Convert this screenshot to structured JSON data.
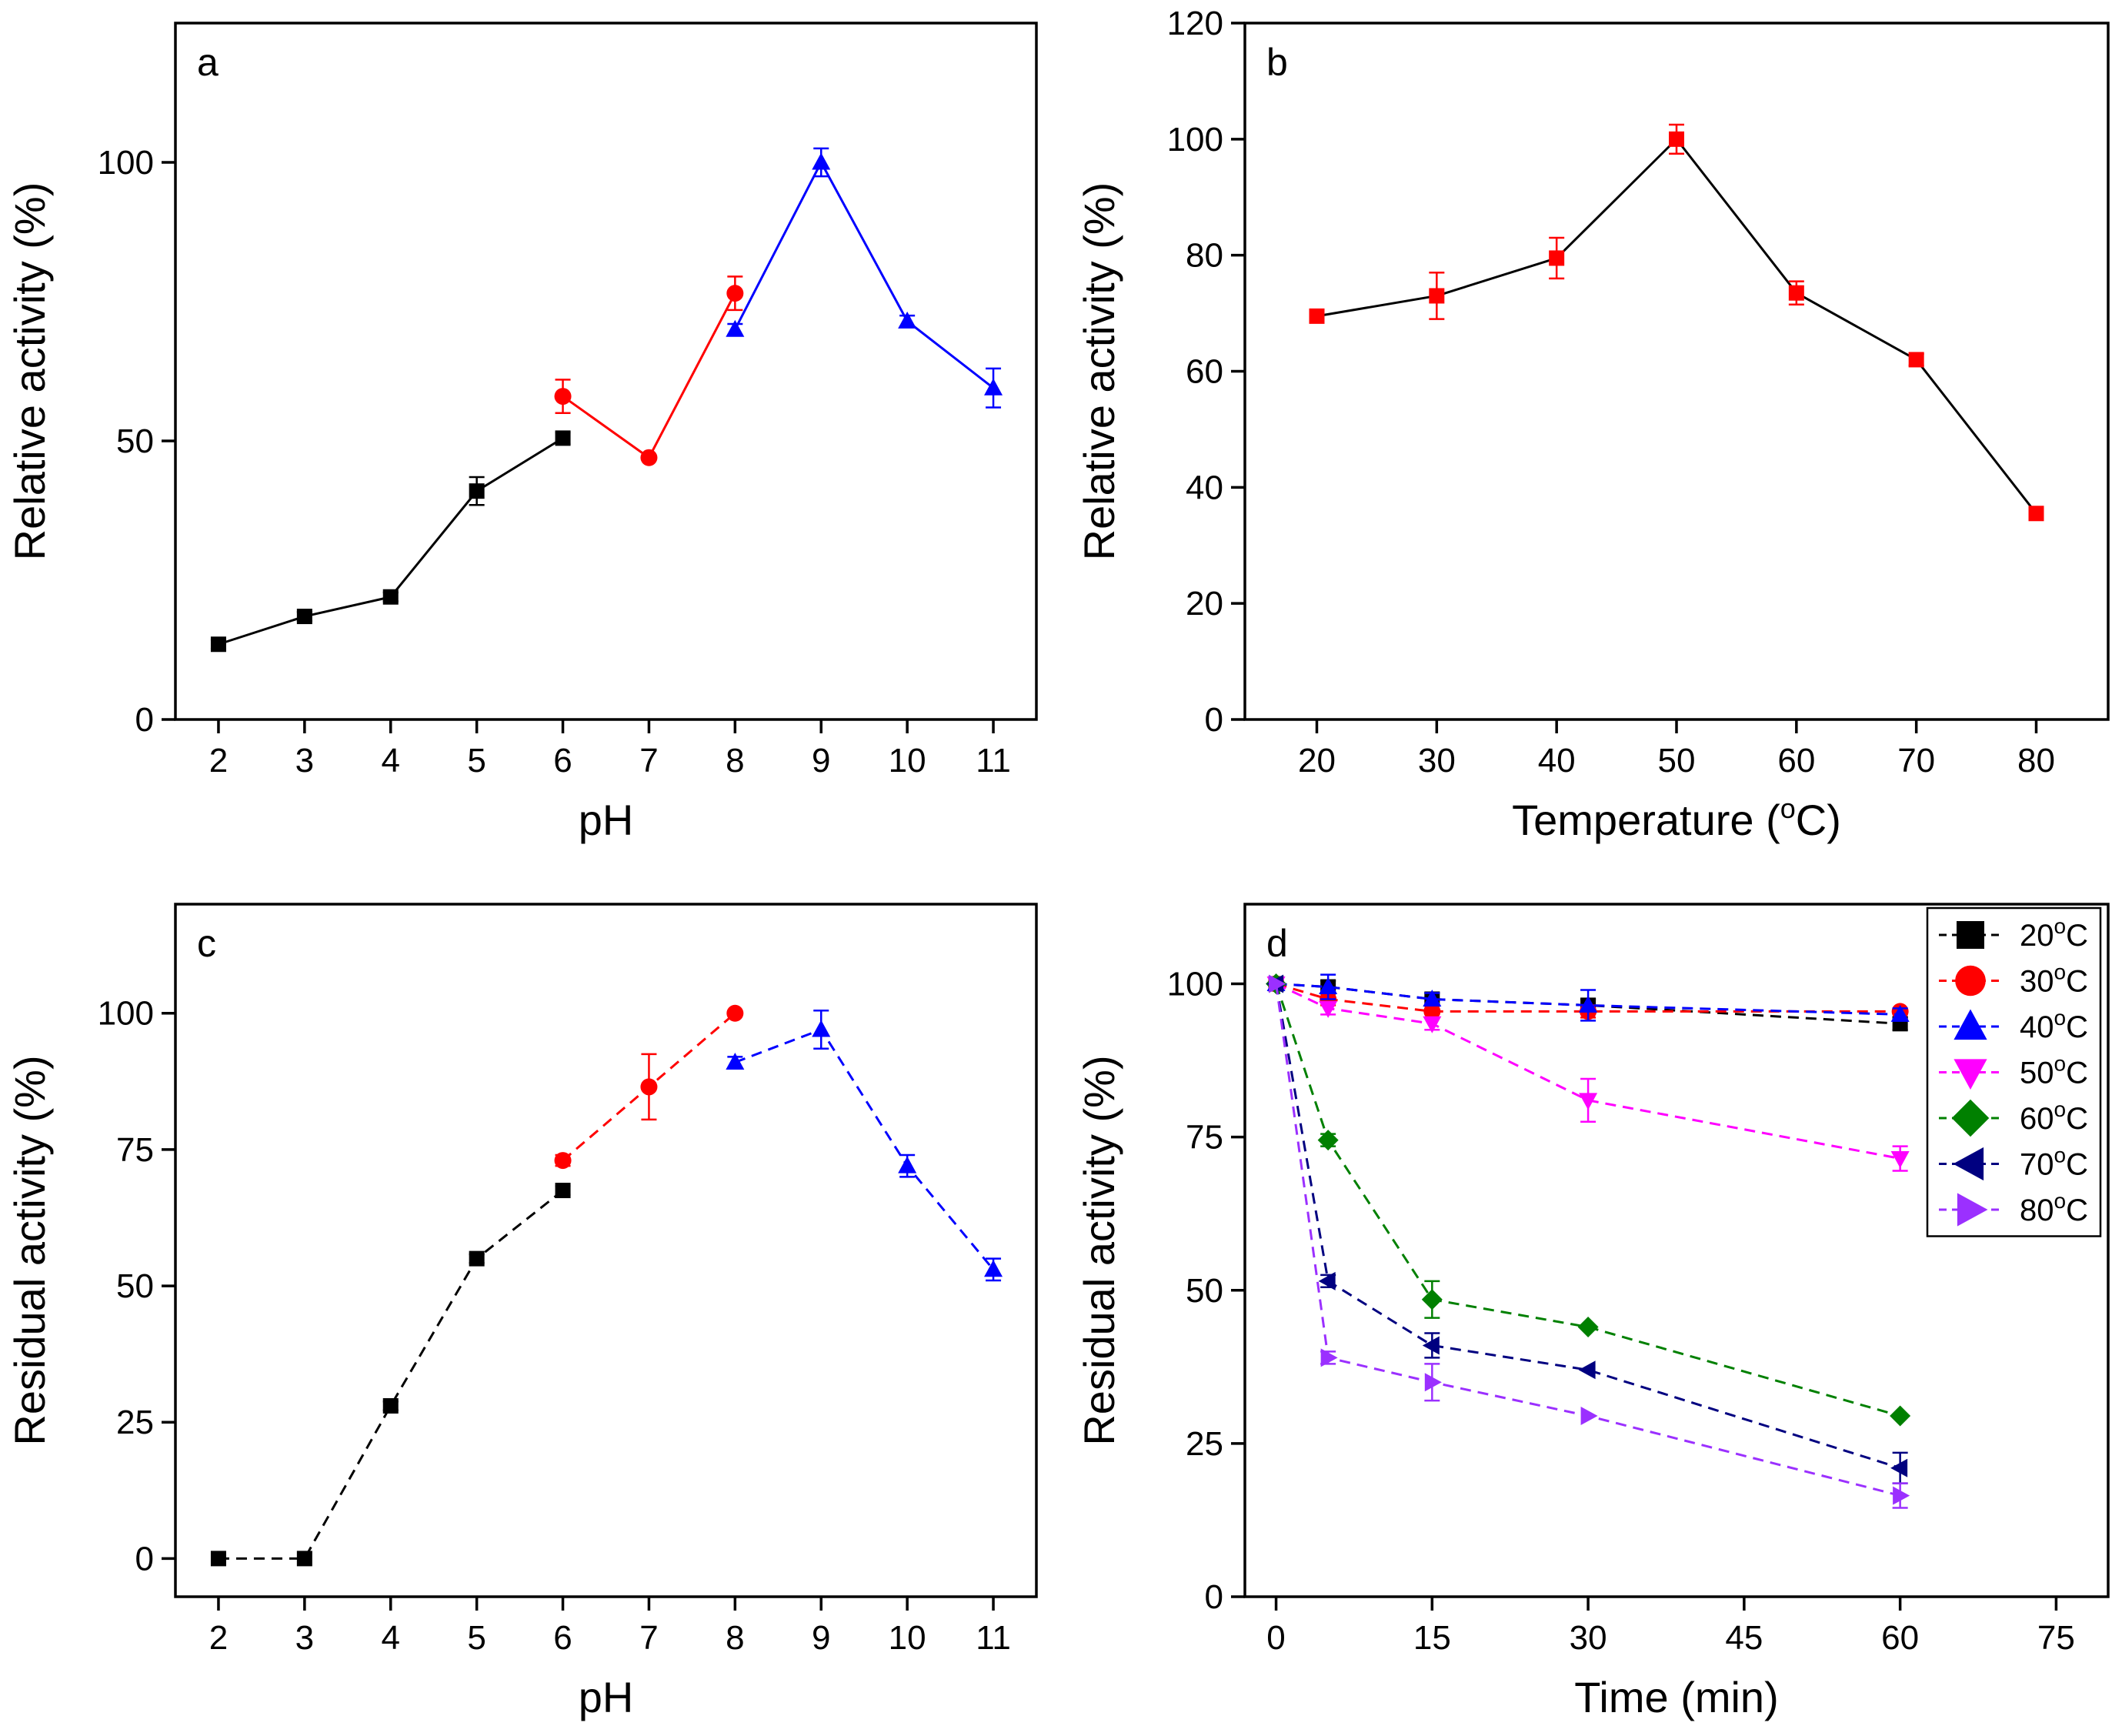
{
  "chart_data": [
    {
      "id": "a",
      "type": "line",
      "letter": "a",
      "xlabel": "pH",
      "ylabel": "Relative activity (%)",
      "xlim": [
        1.5,
        11.5
      ],
      "ylim": [
        0,
        125
      ],
      "xticks": [
        "2",
        "3",
        "4",
        "5",
        "6",
        "7",
        "8",
        "9",
        "10",
        "11"
      ],
      "yticks": [
        "0",
        "50",
        "100"
      ],
      "series": [
        {
          "name": "black",
          "color": "#000000",
          "marker": "square",
          "dash": "solid",
          "x": [
            2,
            3,
            4,
            5,
            6
          ],
          "y": [
            13.5,
            18.5,
            22,
            41,
            50.5
          ],
          "err": [
            0.8,
            0.8,
            0.8,
            2.5,
            1
          ]
        },
        {
          "name": "red",
          "color": "#ff0000",
          "marker": "circle",
          "dash": "solid",
          "x": [
            6,
            7,
            8
          ],
          "y": [
            58,
            47,
            76.5
          ],
          "err": [
            3,
            0.5,
            3
          ]
        },
        {
          "name": "blue",
          "color": "#0000ff",
          "marker": "triangle-up",
          "dash": "solid",
          "x": [
            8,
            9,
            10,
            11
          ],
          "y": [
            70,
            100,
            71.5,
            59.5
          ],
          "err": [
            1,
            2.5,
            1,
            3.5
          ]
        }
      ]
    },
    {
      "id": "b",
      "type": "line",
      "letter": "b",
      "xlabel": "Temperature (",
      "xlabel_sup": "o",
      "xlabel_end": "C)",
      "ylabel": "Relative activity (%)",
      "xlim": [
        14,
        86
      ],
      "ylim": [
        0,
        120
      ],
      "xticks": [
        "20",
        "30",
        "40",
        "50",
        "60",
        "70",
        "80"
      ],
      "yticks": [
        "0",
        "20",
        "40",
        "60",
        "80",
        "100",
        "120"
      ],
      "series": [
        {
          "name": "activity",
          "color": "#000000",
          "marker_color": "#ff0000",
          "marker": "square",
          "dash": "solid",
          "x": [
            20,
            30,
            40,
            50,
            60,
            70,
            80
          ],
          "y": [
            69.5,
            73,
            79.5,
            100,
            73.5,
            62,
            35.5
          ],
          "err": [
            0.5,
            4,
            3.5,
            2.5,
            2,
            1,
            0.5
          ]
        }
      ]
    },
    {
      "id": "c",
      "type": "line",
      "letter": "c",
      "xlabel": "pH",
      "ylabel": "Residual activity (%)",
      "xlim": [
        1.5,
        11.5
      ],
      "ylim": [
        -7,
        120
      ],
      "xticks": [
        "2",
        "3",
        "4",
        "5",
        "6",
        "7",
        "8",
        "9",
        "10",
        "11"
      ],
      "yticks": [
        "0",
        "25",
        "50",
        "75",
        "100"
      ],
      "series": [
        {
          "name": "black",
          "color": "#000000",
          "marker": "square",
          "dash": "dashed",
          "x": [
            2,
            3,
            4,
            5,
            6
          ],
          "y": [
            0,
            0,
            28,
            55,
            67.5
          ],
          "err": [
            0.5,
            0.5,
            0.8,
            0.8,
            0.8
          ]
        },
        {
          "name": "red",
          "color": "#ff0000",
          "marker": "circle",
          "dash": "dashed",
          "x": [
            6,
            7,
            8
          ],
          "y": [
            73,
            86.5,
            100
          ],
          "err": [
            1,
            6,
            0.5
          ]
        },
        {
          "name": "blue",
          "color": "#0000ff",
          "marker": "triangle-up",
          "dash": "dashed",
          "x": [
            8,
            9,
            10,
            11
          ],
          "y": [
            91,
            97,
            72,
            53
          ],
          "err": [
            1,
            3.5,
            2,
            2
          ]
        }
      ]
    },
    {
      "id": "d",
      "type": "line",
      "letter": "d",
      "xlabel": "Time (min)",
      "ylabel": "Residual activity (%)",
      "xlim": [
        -3,
        80
      ],
      "ylim": [
        0,
        113
      ],
      "xticks": [
        "0",
        "15",
        "30",
        "45",
        "60",
        "75"
      ],
      "yticks": [
        "0",
        "25",
        "50",
        "75",
        "100"
      ],
      "legend": {
        "position": "top-right",
        "sup": "o",
        "suffix": "C"
      },
      "series": [
        {
          "name": "20",
          "color": "#000000",
          "marker": "square",
          "dash": "dashed",
          "x": [
            0,
            5,
            15,
            30,
            60
          ],
          "y": [
            100,
            99.5,
            97.5,
            96.5,
            93.5
          ],
          "err": [
            0.5,
            1,
            1,
            1,
            1
          ]
        },
        {
          "name": "30",
          "color": "#ff0000",
          "marker": "circle",
          "dash": "dashed",
          "x": [
            0,
            5,
            15,
            30,
            60
          ],
          "y": [
            100,
            97.5,
            95.5,
            95.5,
            95.5
          ],
          "err": [
            0.5,
            1,
            1,
            1,
            0.5
          ]
        },
        {
          "name": "40",
          "color": "#0000ff",
          "marker": "triangle-up",
          "dash": "dashed",
          "x": [
            0,
            5,
            15,
            30,
            60
          ],
          "y": [
            100,
            99.5,
            97.5,
            96.5,
            95
          ],
          "err": [
            0.5,
            2,
            1,
            2.5,
            1
          ]
        },
        {
          "name": "50",
          "color": "#ff00ff",
          "marker": "triangle-down",
          "dash": "dashed",
          "x": [
            0,
            5,
            15,
            30,
            60
          ],
          "y": [
            100,
            96,
            93.5,
            81,
            71.5
          ],
          "err": [
            0.5,
            1,
            1,
            3.5,
            2
          ]
        },
        {
          "name": "60",
          "color": "#008000",
          "marker": "diamond",
          "dash": "dashed",
          "x": [
            0,
            5,
            15,
            30,
            60
          ],
          "y": [
            100,
            74.5,
            48.5,
            44,
            29.5
          ],
          "err": [
            0.5,
            1,
            3,
            0.5,
            0.5
          ]
        },
        {
          "name": "70",
          "color": "#000080",
          "marker": "triangle-left",
          "dash": "dashed",
          "x": [
            0,
            5,
            15,
            30,
            60
          ],
          "y": [
            100,
            51.5,
            41,
            37,
            21
          ],
          "err": [
            0.5,
            1,
            2,
            0.5,
            2.5
          ]
        },
        {
          "name": "80",
          "color": "#9b30ff",
          "marker": "triangle-right",
          "dash": "dashed",
          "x": [
            0,
            5,
            15,
            30,
            60
          ],
          "y": [
            100,
            39,
            35,
            29.5,
            16.5
          ],
          "err": [
            0.5,
            1,
            3,
            0.5,
            2
          ]
        }
      ]
    }
  ]
}
